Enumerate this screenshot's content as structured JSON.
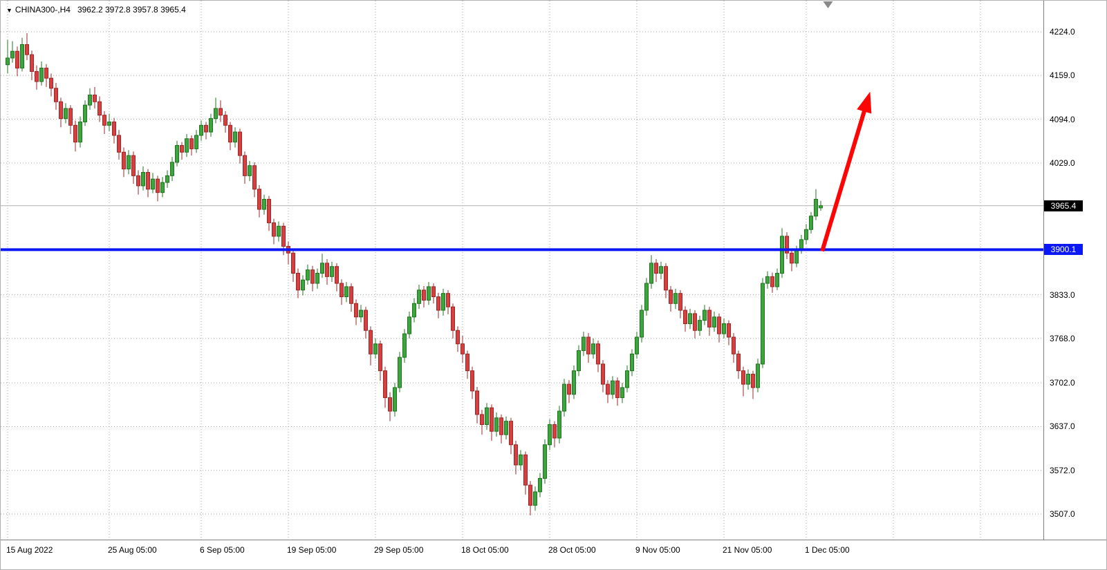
{
  "header": {
    "symbol_timeframe": "CHINA300-,H4",
    "ohlc": "3962.2 3972.8 3957.8 3965.4"
  },
  "icons": {
    "symbol_marker": "▼"
  },
  "price_tags": {
    "current": "3965.4",
    "current_bg": "#000000",
    "hline": "3900.1",
    "hline_bg": "#0a18f5"
  },
  "chart_data": {
    "type": "candlestick",
    "symbol": "CHINA300-",
    "timeframe": "H4",
    "title": "CHINA300-,H4",
    "last_ohlc": {
      "open": 3962.2,
      "high": 3972.8,
      "low": 3957.8,
      "close": 3965.4
    },
    "current_price": 3965.4,
    "horizontal_line_price": 3900.1,
    "ylim": [
      3469,
      4270
    ],
    "grid": true,
    "y_ticks": [
      {
        "p": 4224.0,
        "label": "4224.0"
      },
      {
        "p": 4159.0,
        "label": "4159.0"
      },
      {
        "p": 4094.0,
        "label": "4094.0"
      },
      {
        "p": 4029.0,
        "label": "4029.0"
      },
      {
        "p": 3833.0,
        "label": "3833.0"
      },
      {
        "p": 3768.0,
        "label": "3768.0"
      },
      {
        "p": 3702.0,
        "label": "3702.0"
      },
      {
        "p": 3637.0,
        "label": "3637.0"
      },
      {
        "p": 3572.0,
        "label": "3572.0"
      },
      {
        "p": 3507.0,
        "label": "3507.0"
      }
    ],
    "x_ticks": [
      {
        "i": 0,
        "label": "15 Aug 2022"
      },
      {
        "i": 21,
        "label": "25 Aug 05:00"
      },
      {
        "i": 40,
        "label": "6 Sep 05:00"
      },
      {
        "i": 58,
        "label": "19 Sep 05:00"
      },
      {
        "i": 76,
        "label": "29 Sep 05:00"
      },
      {
        "i": 94,
        "label": "18 Oct 05:00"
      },
      {
        "i": 112,
        "label": "28 Oct 05:00"
      },
      {
        "i": 130,
        "label": "9 Nov 05:00"
      },
      {
        "i": 148,
        "label": "21 Nov 05:00"
      },
      {
        "i": 165,
        "label": "1 Dec 05:00"
      }
    ],
    "extra_vgrid_i": [
      183,
      201
    ],
    "colors": {
      "bull": "#3da53d",
      "bull_stroke": "#1d741d",
      "bear": "#d64040",
      "bear_stroke": "#9c2626",
      "hline": "#0a18f5",
      "arrow": "#fd0505",
      "grid": "#a6a6a6",
      "current_line": "#b2b2b2",
      "shift_marker": "#8a8a8a"
    },
    "arrow": {
      "from_i": 168.3,
      "from_price": 3898,
      "to_i": 178.2,
      "to_price": 4135
    },
    "candles": [
      [
        4175,
        4212,
        4162,
        4185
      ],
      [
        4185,
        4210,
        4178,
        4195
      ],
      [
        4195,
        4202,
        4158,
        4170
      ],
      [
        4170,
        4215,
        4165,
        4205
      ],
      [
        4205,
        4222,
        4182,
        4190
      ],
      [
        4190,
        4196,
        4152,
        4165
      ],
      [
        4165,
        4174,
        4138,
        4150
      ],
      [
        4150,
        4180,
        4144,
        4170
      ],
      [
        4170,
        4176,
        4142,
        4155
      ],
      [
        4155,
        4162,
        4128,
        4140
      ],
      [
        4140,
        4148,
        4108,
        4120
      ],
      [
        4120,
        4126,
        4082,
        4095
      ],
      [
        4095,
        4118,
        4088,
        4110
      ],
      [
        4110,
        4115,
        4072,
        4085
      ],
      [
        4085,
        4092,
        4046,
        4060
      ],
      [
        4060,
        4098,
        4052,
        4090
      ],
      [
        4090,
        4122,
        4084,
        4115
      ],
      [
        4115,
        4140,
        4108,
        4130
      ],
      [
        4130,
        4142,
        4110,
        4120
      ],
      [
        4120,
        4128,
        4090,
        4100
      ],
      [
        4100,
        4106,
        4072,
        4085
      ],
      [
        4085,
        4102,
        4076,
        4090
      ],
      [
        4090,
        4096,
        4058,
        4070
      ],
      [
        4070,
        4078,
        4034,
        4045
      ],
      [
        4045,
        4052,
        4008,
        4020
      ],
      [
        4020,
        4048,
        4012,
        4040
      ],
      [
        4040,
        4046,
        3998,
        4010
      ],
      [
        4010,
        4018,
        3982,
        3995
      ],
      [
        3995,
        4024,
        3988,
        4015
      ],
      [
        4015,
        4020,
        3978,
        3990
      ],
      [
        3990,
        4014,
        3984,
        4005
      ],
      [
        4005,
        4010,
        3972,
        3985
      ],
      [
        3985,
        4008,
        3978,
        4000
      ],
      [
        4000,
        4018,
        3992,
        4010
      ],
      [
        4010,
        4038,
        4002,
        4030
      ],
      [
        4030,
        4062,
        4024,
        4055
      ],
      [
        4055,
        4060,
        4034,
        4045
      ],
      [
        4045,
        4072,
        4038,
        4065
      ],
      [
        4065,
        4070,
        4040,
        4050
      ],
      [
        4050,
        4078,
        4044,
        4070
      ],
      [
        4070,
        4092,
        4062,
        4085
      ],
      [
        4085,
        4090,
        4064,
        4075
      ],
      [
        4075,
        4102,
        4068,
        4095
      ],
      [
        4095,
        4126,
        4088,
        4110
      ],
      [
        4110,
        4122,
        4090,
        4100
      ],
      [
        4100,
        4106,
        4074,
        4085
      ],
      [
        4085,
        4090,
        4048,
        4060
      ],
      [
        4060,
        4082,
        4052,
        4075
      ],
      [
        4075,
        4080,
        4028,
        4040
      ],
      [
        4040,
        4046,
        3998,
        4010
      ],
      [
        4010,
        4032,
        4002,
        4025
      ],
      [
        4025,
        4030,
        3978,
        3990
      ],
      [
        3990,
        3996,
        3948,
        3960
      ],
      [
        3960,
        3982,
        3952,
        3975
      ],
      [
        3975,
        3980,
        3928,
        3940
      ],
      [
        3940,
        3946,
        3908,
        3920
      ],
      [
        3920,
        3942,
        3912,
        3935
      ],
      [
        3935,
        3940,
        3892,
        3905
      ],
      [
        3905,
        3912,
        3878,
        3895
      ],
      [
        3895,
        3900,
        3852,
        3865
      ],
      [
        3865,
        3872,
        3828,
        3840
      ],
      [
        3840,
        3862,
        3832,
        3855
      ],
      [
        3855,
        3878,
        3848,
        3870
      ],
      [
        3870,
        3876,
        3838,
        3850
      ],
      [
        3850,
        3872,
        3842,
        3865
      ],
      [
        3865,
        3894,
        3858,
        3880
      ],
      [
        3880,
        3886,
        3848,
        3860
      ],
      [
        3860,
        3882,
        3852,
        3875
      ],
      [
        3875,
        3880,
        3838,
        3850
      ],
      [
        3850,
        3856,
        3818,
        3830
      ],
      [
        3830,
        3852,
        3822,
        3845
      ],
      [
        3845,
        3850,
        3808,
        3820
      ],
      [
        3820,
        3826,
        3788,
        3800
      ],
      [
        3800,
        3818,
        3792,
        3810
      ],
      [
        3810,
        3815,
        3768,
        3780
      ],
      [
        3780,
        3786,
        3728,
        3745
      ],
      [
        3745,
        3768,
        3738,
        3760
      ],
      [
        3760,
        3765,
        3705,
        3720
      ],
      [
        3720,
        3726,
        3665,
        3680
      ],
      [
        3680,
        3688,
        3645,
        3660
      ],
      [
        3660,
        3702,
        3652,
        3695
      ],
      [
        3695,
        3748,
        3688,
        3740
      ],
      [
        3740,
        3782,
        3732,
        3775
      ],
      [
        3775,
        3808,
        3768,
        3800
      ],
      [
        3800,
        3828,
        3792,
        3820
      ],
      [
        3820,
        3848,
        3812,
        3840
      ],
      [
        3840,
        3846,
        3814,
        3825
      ],
      [
        3825,
        3852,
        3818,
        3845
      ],
      [
        3845,
        3850,
        3820,
        3830
      ],
      [
        3830,
        3836,
        3798,
        3810
      ],
      [
        3810,
        3842,
        3802,
        3835
      ],
      [
        3835,
        3840,
        3804,
        3815
      ],
      [
        3815,
        3820,
        3768,
        3780
      ],
      [
        3780,
        3786,
        3748,
        3760
      ],
      [
        3760,
        3772,
        3732,
        3745
      ],
      [
        3745,
        3750,
        3708,
        3720
      ],
      [
        3720,
        3726,
        3678,
        3690
      ],
      [
        3690,
        3696,
        3642,
        3655
      ],
      [
        3655,
        3662,
        3625,
        3640
      ],
      [
        3640,
        3672,
        3632,
        3665
      ],
      [
        3665,
        3670,
        3616,
        3630
      ],
      [
        3630,
        3658,
        3622,
        3650
      ],
      [
        3650,
        3655,
        3612,
        3625
      ],
      [
        3625,
        3652,
        3618,
        3645
      ],
      [
        3645,
        3650,
        3596,
        3610
      ],
      [
        3610,
        3616,
        3566,
        3580
      ],
      [
        3580,
        3602,
        3572,
        3595
      ],
      [
        3595,
        3600,
        3536,
        3550
      ],
      [
        3550,
        3556,
        3505,
        3520
      ],
      [
        3520,
        3548,
        3512,
        3540
      ],
      [
        3540,
        3568,
        3532,
        3560
      ],
      [
        3560,
        3618,
        3552,
        3610
      ],
      [
        3610,
        3648,
        3602,
        3640
      ],
      [
        3640,
        3645,
        3606,
        3620
      ],
      [
        3620,
        3668,
        3612,
        3660
      ],
      [
        3660,
        3708,
        3652,
        3700
      ],
      [
        3700,
        3706,
        3672,
        3685
      ],
      [
        3685,
        3728,
        3678,
        3720
      ],
      [
        3720,
        3758,
        3712,
        3750
      ],
      [
        3750,
        3778,
        3742,
        3770
      ],
      [
        3770,
        3776,
        3732,
        3745
      ],
      [
        3745,
        3768,
        3738,
        3760
      ],
      [
        3760,
        3765,
        3718,
        3730
      ],
      [
        3730,
        3736,
        3688,
        3700
      ],
      [
        3700,
        3706,
        3672,
        3685
      ],
      [
        3685,
        3712,
        3678,
        3705
      ],
      [
        3705,
        3710,
        3668,
        3680
      ],
      [
        3680,
        3702,
        3672,
        3695
      ],
      [
        3695,
        3728,
        3688,
        3720
      ],
      [
        3720,
        3752,
        3712,
        3745
      ],
      [
        3745,
        3778,
        3738,
        3770
      ],
      [
        3770,
        3818,
        3762,
        3810
      ],
      [
        3810,
        3858,
        3802,
        3850
      ],
      [
        3850,
        3892,
        3842,
        3880
      ],
      [
        3880,
        3886,
        3852,
        3865
      ],
      [
        3865,
        3882,
        3856,
        3875
      ],
      [
        3875,
        3880,
        3828,
        3840
      ],
      [
        3840,
        3846,
        3808,
        3820
      ],
      [
        3820,
        3842,
        3812,
        3835
      ],
      [
        3835,
        3840,
        3798,
        3810
      ],
      [
        3810,
        3816,
        3778,
        3790
      ],
      [
        3790,
        3812,
        3782,
        3805
      ],
      [
        3805,
        3810,
        3768,
        3780
      ],
      [
        3780,
        3802,
        3772,
        3795
      ],
      [
        3795,
        3818,
        3788,
        3810
      ],
      [
        3810,
        3815,
        3772,
        3785
      ],
      [
        3785,
        3808,
        3778,
        3800
      ],
      [
        3800,
        3805,
        3762,
        3775
      ],
      [
        3775,
        3798,
        3768,
        3790
      ],
      [
        3790,
        3795,
        3758,
        3770
      ],
      [
        3770,
        3776,
        3732,
        3745
      ],
      [
        3745,
        3750,
        3708,
        3720
      ],
      [
        3720,
        3726,
        3682,
        3700
      ],
      [
        3700,
        3722,
        3692,
        3715
      ],
      [
        3715,
        3720,
        3678,
        3695
      ],
      [
        3695,
        3738,
        3688,
        3730
      ],
      [
        3730,
        3858,
        3724,
        3850
      ],
      [
        3850,
        3868,
        3842,
        3860
      ],
      [
        3860,
        3866,
        3836,
        3845
      ],
      [
        3845,
        3872,
        3840,
        3865
      ],
      [
        3865,
        3932,
        3858,
        3920
      ],
      [
        3920,
        3926,
        3886,
        3895
      ],
      [
        3895,
        3900,
        3868,
        3880
      ],
      [
        3880,
        3906,
        3874,
        3900
      ],
      [
        3900,
        3922,
        3894,
        3915
      ],
      [
        3915,
        3938,
        3908,
        3930
      ],
      [
        3930,
        3956,
        3924,
        3950
      ],
      [
        3950,
        3990,
        3944,
        3975
      ],
      [
        3962.2,
        3972.8,
        3957.8,
        3965.4
      ]
    ]
  }
}
